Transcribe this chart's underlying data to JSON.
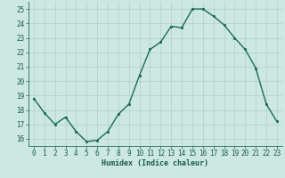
{
  "x": [
    0,
    1,
    2,
    3,
    4,
    5,
    6,
    7,
    8,
    9,
    10,
    11,
    12,
    13,
    14,
    15,
    16,
    17,
    18,
    19,
    20,
    21,
    22,
    23
  ],
  "y": [
    18.8,
    17.8,
    17.0,
    17.5,
    16.5,
    15.8,
    15.9,
    16.5,
    17.7,
    18.4,
    20.4,
    22.2,
    22.7,
    23.8,
    23.7,
    25.0,
    25.0,
    24.5,
    23.9,
    23.0,
    22.2,
    20.9,
    18.4,
    17.2
  ],
  "line_color": "#1a6b5a",
  "marker": ".",
  "bg_color": "#cce8e0",
  "grid_color": "#b0cfc8",
  "axis_color": "#1a6b5a",
  "xlabel": "Humidex (Indice chaleur)",
  "ylim": [
    15.5,
    25.5
  ],
  "xlim": [
    -0.5,
    23.5
  ],
  "yticks": [
    16,
    17,
    18,
    19,
    20,
    21,
    22,
    23,
    24,
    25
  ],
  "xticks": [
    0,
    1,
    2,
    3,
    4,
    5,
    6,
    7,
    8,
    9,
    10,
    11,
    12,
    13,
    14,
    15,
    16,
    17,
    18,
    19,
    20,
    21,
    22,
    23
  ],
  "font_color": "#1a5a50",
  "label_fontsize": 6.0,
  "tick_fontsize": 5.5,
  "linewidth": 1.0,
  "markersize": 2.5
}
